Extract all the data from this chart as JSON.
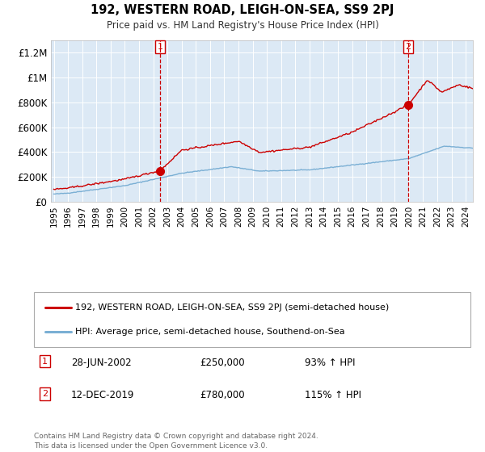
{
  "title": "192, WESTERN ROAD, LEIGH-ON-SEA, SS9 2PJ",
  "subtitle": "Price paid vs. HM Land Registry's House Price Index (HPI)",
  "background_color": "#dce9f5",
  "red_line_color": "#cc0000",
  "blue_line_color": "#7aafd4",
  "red_dot_color": "#cc0000",
  "vline_color": "#cc0000",
  "annotation_box_color": "#cc0000",
  "ylim": [
    0,
    1300000
  ],
  "yticks": [
    0,
    200000,
    400000,
    600000,
    800000,
    1000000,
    1200000
  ],
  "ytick_labels": [
    "£0",
    "£200K",
    "£400K",
    "£600K",
    "£800K",
    "£1M",
    "£1.2M"
  ],
  "sale1_date": 2002.49,
  "sale1_price": 250000,
  "sale1_label": "1",
  "sale2_date": 2019.95,
  "sale2_price": 780000,
  "sale2_label": "2",
  "legend_red": "192, WESTERN ROAD, LEIGH-ON-SEA, SS9 2PJ (semi-detached house)",
  "legend_blue": "HPI: Average price, semi-detached house, Southend-on-Sea",
  "note1_label": "1",
  "note1_date": "28-JUN-2002",
  "note1_price": "£250,000",
  "note1_hpi": "93% ↑ HPI",
  "note2_label": "2",
  "note2_date": "12-DEC-2019",
  "note2_price": "£780,000",
  "note2_hpi": "115% ↑ HPI",
  "footnote": "Contains HM Land Registry data © Crown copyright and database right 2024.\nThis data is licensed under the Open Government Licence v3.0.",
  "xstart": 1995.0,
  "xend": 2024.5
}
